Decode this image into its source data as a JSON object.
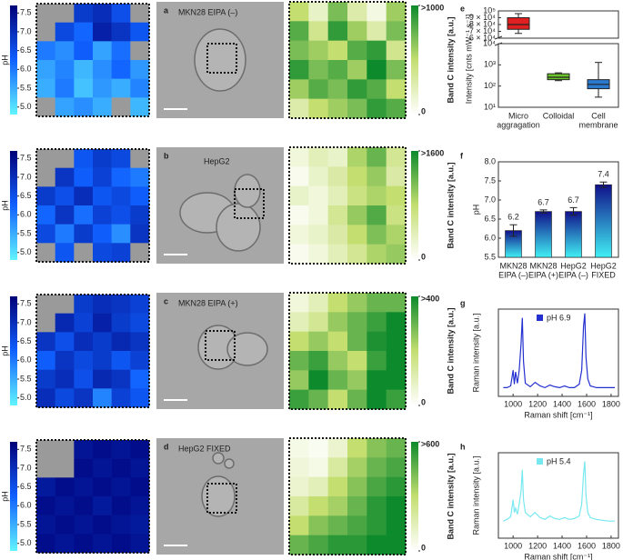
{
  "ph_colormap": [
    "#60f4ff",
    "#1060ff",
    "#000078"
  ],
  "intensity_colormap": [
    "#ffffff",
    "#c4de70",
    "#0c8a2c"
  ],
  "rows": [
    {
      "letter": "a",
      "label": "MKN28 EIPA (–)",
      "ph_label": "pH",
      "ph_lim": [
        4.8,
        7.7
      ],
      "ph_ticks": [
        {
          "value": 5,
          "label": "5.0"
        },
        5.5,
        {
          "value": 6,
          "label": "6.0"
        },
        6.5,
        {
          "value": 7,
          "label": "7.0"
        },
        7.5
      ],
      "ph_map": [
        [
          null,
          null,
          6.8,
          7.0,
          6.5,
          null
        ],
        [
          null,
          6.6,
          6.2,
          7.2,
          6.9,
          6.4
        ],
        [
          6.0,
          5.8,
          6.3,
          5.6,
          6.1,
          null
        ],
        [
          5.6,
          5.9,
          5.4,
          5.8,
          6.2,
          5.7
        ],
        [
          5.5,
          6.0,
          5.3,
          5.7,
          5.5,
          5.9
        ],
        [
          null,
          5.6,
          5.8,
          5.5,
          null,
          5.4
        ]
      ],
      "intensity_label": "Band C intensity [a.u.]",
      "intensity_lim": [
        0,
        1000
      ],
      "intensity_ticks": [
        {
          "value": 1000,
          "label": ">1000"
        },
        0
      ],
      "intensity_map": [
        [
          500,
          200,
          700,
          300,
          100,
          600
        ],
        [
          800,
          400,
          900,
          600,
          300,
          700
        ],
        [
          700,
          600,
          500,
          800,
          900,
          400
        ],
        [
          900,
          700,
          800,
          600,
          1000,
          700
        ],
        [
          600,
          800,
          700,
          900,
          800,
          500
        ],
        [
          300,
          500,
          600,
          700,
          900,
          800
        ]
      ]
    },
    {
      "letter": "b",
      "label": "HepG2",
      "ph_label": "pH",
      "ph_lim": [
        4.8,
        7.7
      ],
      "ph_ticks": [
        {
          "value": 5,
          "label": "5.0"
        },
        5.5,
        {
          "value": 6,
          "label": "6.0"
        },
        6.5,
        {
          "value": 7,
          "label": "7.0"
        },
        7.5
      ],
      "ph_map": [
        [
          null,
          null,
          6.4,
          6.8,
          6.6,
          null
        ],
        [
          null,
          6.9,
          6.3,
          6.7,
          6.2,
          6.0
        ],
        [
          6.8,
          6.5,
          7.0,
          6.4,
          6.6,
          6.3
        ],
        [
          6.2,
          6.9,
          6.1,
          6.7,
          6.5,
          6.8
        ],
        [
          6.6,
          6.0,
          6.8,
          6.3,
          5.8,
          6.9
        ],
        [
          null,
          6.4,
          null,
          6.6,
          6.7,
          null
        ]
      ],
      "intensity_label": "Band C intensity [a.u.]",
      "intensity_lim": [
        0,
        1600
      ],
      "intensity_ticks": [
        {
          "value": 1600,
          "label": ">1600"
        },
        0
      ],
      "intensity_map": [
        [
          200,
          400,
          300,
          900,
          1200,
          600
        ],
        [
          100,
          300,
          500,
          800,
          1000,
          500
        ],
        [
          300,
          200,
          400,
          700,
          900,
          800
        ],
        [
          100,
          200,
          600,
          1000,
          1300,
          700
        ],
        [
          200,
          300,
          500,
          800,
          1100,
          900
        ],
        [
          100,
          200,
          400,
          600,
          900,
          1000
        ]
      ]
    },
    {
      "letter": "c",
      "label": "MKN28 EIPA (+)",
      "ph_label": "pH",
      "ph_lim": [
        4.8,
        7.7
      ],
      "ph_ticks": [
        {
          "value": 5,
          "label": "5.0"
        },
        5.5,
        {
          "value": 6,
          "label": "6.0"
        },
        6.5,
        {
          "value": 7,
          "label": "7.0"
        },
        7.5
      ],
      "ph_map": [
        [
          null,
          null,
          6.8,
          7.0,
          6.9,
          6.7
        ],
        [
          null,
          7.1,
          6.7,
          7.2,
          6.8,
          6.6
        ],
        [
          6.9,
          6.5,
          7.0,
          6.8,
          7.1,
          6.9
        ],
        [
          6.3,
          6.9,
          6.6,
          6.8,
          6.4,
          6.7
        ],
        [
          6.8,
          7.0,
          6.5,
          7.1,
          6.9,
          6.2
        ],
        [
          7.0,
          6.6,
          6.9,
          5.9,
          6.7,
          6.4
        ]
      ],
      "intensity_label": "Band C intensity [a.u.]",
      "intensity_lim": [
        0,
        400
      ],
      "intensity_ticks": [
        {
          "value": 400,
          "label": ">400"
        },
        0
      ],
      "intensity_map": [
        [
          50,
          100,
          200,
          250,
          300,
          300
        ],
        [
          100,
          150,
          250,
          300,
          350,
          400
        ],
        [
          200,
          250,
          200,
          300,
          380,
          400
        ],
        [
          300,
          350,
          250,
          200,
          350,
          400
        ],
        [
          250,
          400,
          300,
          250,
          400,
          400
        ],
        [
          350,
          300,
          200,
          300,
          400,
          350
        ]
      ]
    },
    {
      "letter": "d",
      "label": "HepG2 FIXED",
      "ph_label": "pH",
      "ph_lim": [
        4.8,
        7.7
      ],
      "ph_ticks": [
        {
          "value": 5,
          "label": "5.0"
        },
        5.5,
        {
          "value": 6,
          "label": "6.0"
        },
        6.5,
        {
          "value": 7,
          "label": "7.0"
        },
        7.5
      ],
      "ph_map": [
        [
          null,
          null,
          7.4,
          7.5,
          7.4,
          7.5
        ],
        [
          null,
          null,
          7.5,
          7.4,
          7.5,
          7.4
        ],
        [
          7.3,
          7.5,
          7.4,
          7.5,
          7.4,
          7.5
        ],
        [
          7.5,
          7.4,
          7.5,
          7.3,
          7.5,
          7.4
        ],
        [
          7.4,
          7.5,
          7.4,
          7.5,
          7.4,
          7.3
        ],
        [
          7.5,
          7.4,
          7.5,
          7.4,
          7.5,
          7.4
        ]
      ],
      "intensity_label": "Band C intensity [a.u.]",
      "intensity_lim": [
        0,
        600
      ],
      "intensity_ticks": [
        {
          "value": 600,
          "label": ">600"
        },
        0
      ],
      "intensity_map": [
        [
          50,
          30,
          100,
          300,
          400,
          450
        ],
        [
          80,
          50,
          200,
          350,
          450,
          500
        ],
        [
          100,
          150,
          300,
          400,
          500,
          550
        ],
        [
          200,
          300,
          350,
          450,
          550,
          600
        ],
        [
          300,
          400,
          450,
          500,
          550,
          600
        ],
        [
          450,
          500,
          550,
          550,
          600,
          600
        ]
      ]
    }
  ],
  "chart_data": [
    {
      "panel": "e",
      "type": "box",
      "ylabel": "Intensity [cnts mW⁻¹ s⁻¹]",
      "categories": [
        [
          "Micro",
          "aggragation"
        ],
        [
          "Colloidal"
        ],
        [
          "Cell",
          "membrane"
        ]
      ],
      "boxes": [
        {
          "min": 67000,
          "q1": 73000,
          "median": 80000,
          "q3": 90000,
          "max": 96000
        },
        {
          "min": 180,
          "q1": 200,
          "median": 260,
          "q3": 380,
          "max": 420
        },
        {
          "min": 30,
          "q1": 75,
          "median": 120,
          "q3": 200,
          "max": 1300
        }
      ],
      "colors": [
        "#e02020",
        "#6ac42a",
        "#2a7ad0"
      ],
      "log": true,
      "ylim": [
        10,
        100000
      ],
      "axis_break": [
        10000,
        60000
      ],
      "yticks": [
        {
          "value": 10,
          "label": "10¹"
        },
        {
          "value": 100,
          "label": "10²"
        },
        {
          "value": 1000,
          "label": "10³"
        },
        {
          "value": 10000,
          "label": "10⁴"
        },
        {
          "value": 60000,
          "label": "6 × 10⁴"
        },
        {
          "value": 70000,
          "label": "7 × 10⁴"
        },
        {
          "value": 80000,
          "label": "8 × 10⁴"
        },
        {
          "value": 90000,
          "label": "9 × 10⁴"
        },
        {
          "value": 100000,
          "label": "10⁵"
        }
      ]
    },
    {
      "panel": "f",
      "type": "bar",
      "ylabel": "pH",
      "categories": [
        [
          "MKN28",
          "EIPA (–)"
        ],
        [
          "MKN28",
          "EIPA (+)"
        ],
        [
          "HepG2",
          "EIPA (–)"
        ],
        [
          "HepG2",
          "FIXED"
        ]
      ],
      "values": [
        6.2,
        6.7,
        6.7,
        7.4
      ],
      "errors": [
        0.15,
        0.04,
        0.1,
        0.07
      ],
      "colors": [
        "#40eef4",
        "#10108a"
      ],
      "ylim": [
        5.5,
        8.0
      ],
      "yticks": [
        5.5,
        {
          "value": 6,
          "label": "6.0"
        },
        6.5,
        {
          "value": 7,
          "label": "7.0"
        },
        7.5,
        {
          "value": 8,
          "label": "8.0"
        }
      ]
    },
    {
      "panel": "g",
      "type": "line",
      "xlabel": "Raman shift [cm⁻¹]",
      "ylabel": "Raman intensity [a.u.]",
      "x": [
        920,
        950,
        980,
        1000,
        1010,
        1020,
        1035,
        1050,
        1065,
        1075,
        1085,
        1100,
        1140,
        1180,
        1220,
        1260,
        1300,
        1340,
        1380,
        1420,
        1460,
        1500,
        1540,
        1560,
        1575,
        1585,
        1595,
        1610,
        1630,
        1680,
        1730,
        1780,
        1830
      ],
      "series": [
        {
          "name": "pH 6.9",
          "color": "#2430d0",
          "values": [
            0.1,
            0.1,
            0.12,
            0.3,
            0.14,
            0.28,
            0.15,
            0.3,
            0.6,
            0.9,
            0.4,
            0.15,
            0.11,
            0.16,
            0.12,
            0.1,
            0.13,
            0.11,
            0.1,
            0.12,
            0.1,
            0.1,
            0.14,
            0.3,
            0.8,
            0.95,
            0.45,
            0.2,
            0.12,
            0.1,
            0.1,
            0.1,
            0.1
          ]
        }
      ],
      "xlim": [
        880,
        1860
      ],
      "xticks": [
        1000,
        1200,
        1400,
        1600,
        1800
      ],
      "ylim": [
        0,
        1
      ]
    },
    {
      "panel": "h",
      "type": "line",
      "xlabel": "Raman shift [cm⁻¹]",
      "ylabel": "Raman intensity [a.u.]",
      "x": [
        920,
        950,
        980,
        1000,
        1010,
        1020,
        1035,
        1050,
        1065,
        1075,
        1085,
        1100,
        1140,
        1180,
        1220,
        1260,
        1300,
        1340,
        1380,
        1420,
        1460,
        1500,
        1540,
        1560,
        1575,
        1585,
        1595,
        1610,
        1630,
        1680,
        1730,
        1780,
        1830
      ],
      "series": [
        {
          "name": "pH 5.4",
          "color": "#77e8f0",
          "values": [
            0.2,
            0.22,
            0.25,
            0.45,
            0.3,
            0.35,
            0.28,
            0.4,
            0.55,
            0.8,
            0.45,
            0.3,
            0.25,
            0.3,
            0.24,
            0.22,
            0.26,
            0.23,
            0.22,
            0.24,
            0.22,
            0.23,
            0.26,
            0.4,
            0.75,
            0.9,
            0.5,
            0.3,
            0.24,
            0.22,
            0.21,
            0.2,
            0.2
          ]
        }
      ],
      "xlim": [
        880,
        1860
      ],
      "xticks": [
        1000,
        1200,
        1400,
        1600,
        1800
      ],
      "ylim": [
        0,
        1
      ]
    }
  ]
}
